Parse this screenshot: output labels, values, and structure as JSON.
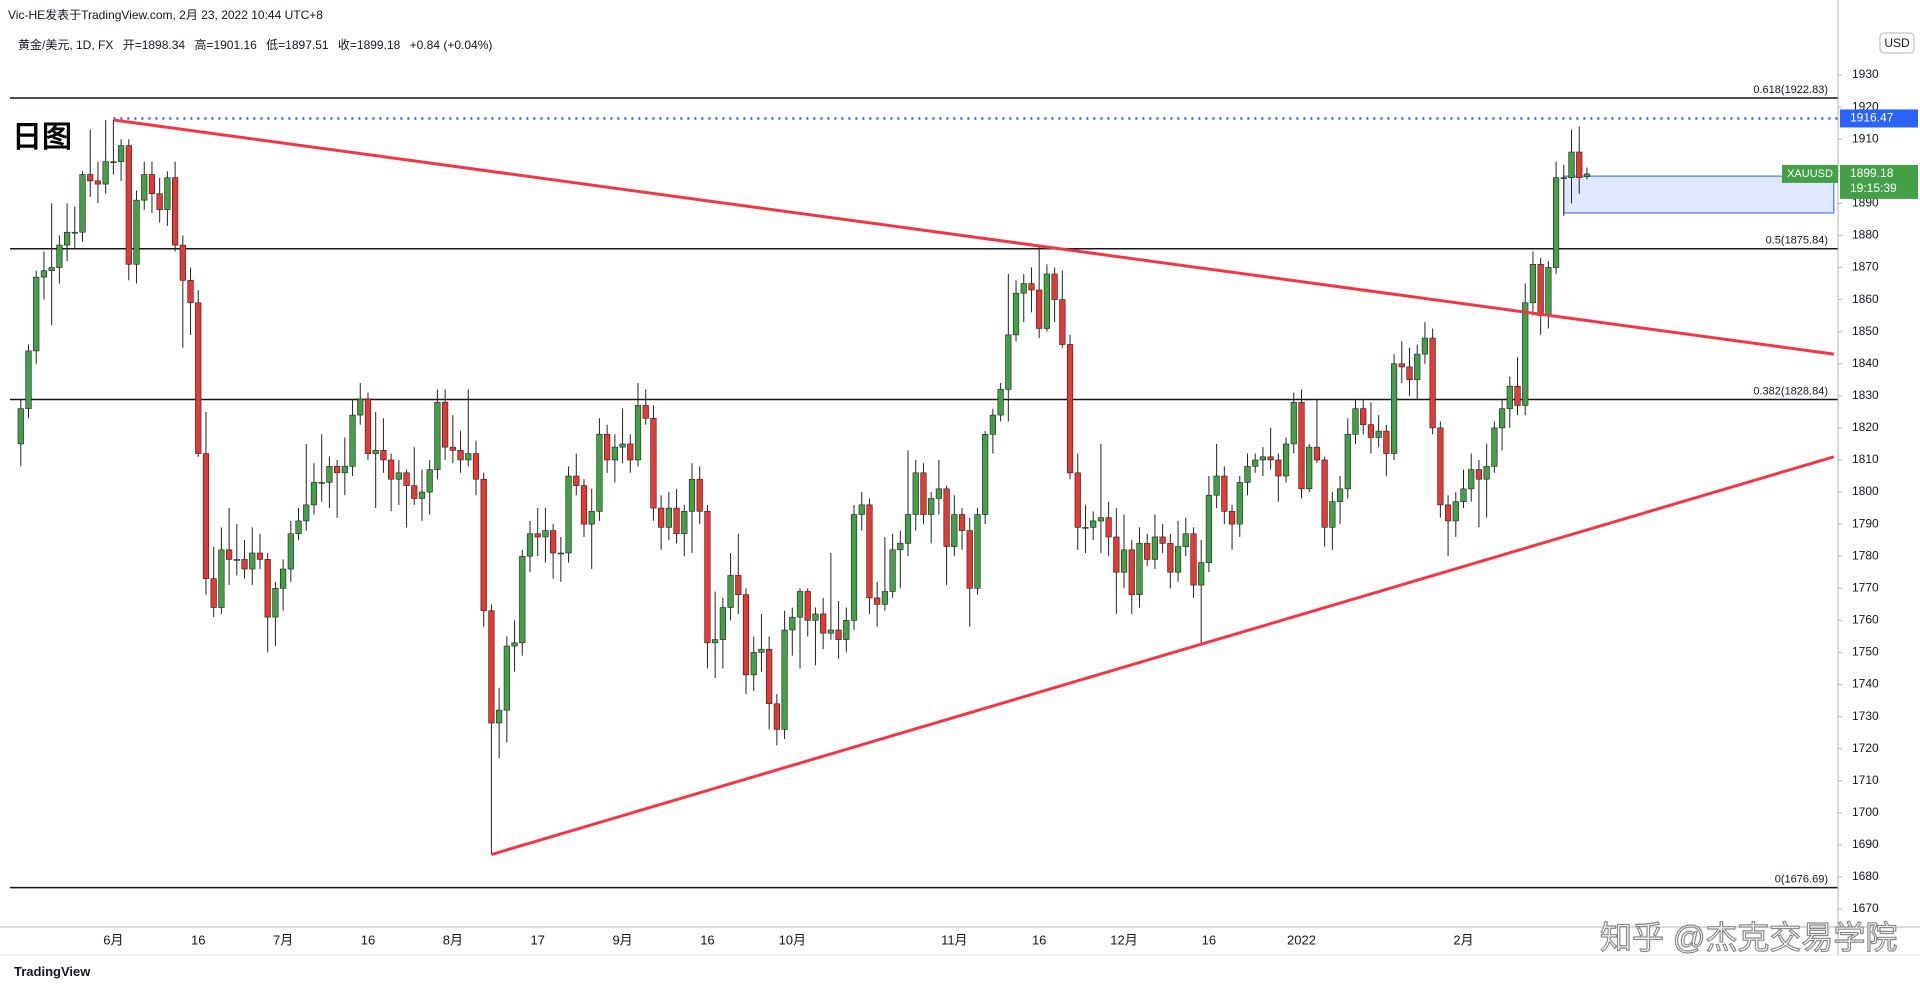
{
  "header": {
    "publisher": "Vic-HE发表于TradingView.com, 2月 23, 2022 10:44 UTC+8",
    "symbol": "黄金/美元, 1D, FX",
    "ohlc": [
      "开=1898.34",
      "高=1901.16",
      "低=1897.51",
      "收=1899.18",
      "+0.84 (+0.04%)"
    ]
  },
  "chart_data": {
    "type": "candlestick",
    "title": "日图",
    "currency": "USD",
    "up_color": "#43a047",
    "down_color": "#e53935",
    "wick_color": "#222222",
    "grid": false,
    "categories": [
      null,
      null,
      null,
      null,
      null,
      null,
      null,
      null,
      null,
      null,
      null,
      null,
      "6月",
      null,
      null,
      null,
      null,
      null,
      null,
      null,
      null,
      null,
      null,
      "16",
      null,
      null,
      null,
      null,
      null,
      null,
      null,
      null,
      null,
      null,
      "7月",
      null,
      null,
      null,
      null,
      null,
      null,
      null,
      null,
      null,
      null,
      "16",
      null,
      null,
      null,
      null,
      null,
      null,
      null,
      null,
      null,
      null,
      "8月",
      null,
      null,
      null,
      null,
      null,
      null,
      null,
      null,
      null,
      null,
      "17",
      null,
      null,
      null,
      null,
      null,
      null,
      null,
      null,
      null,
      null,
      "9月",
      null,
      null,
      null,
      null,
      null,
      null,
      null,
      null,
      null,
      null,
      "16",
      null,
      null,
      null,
      null,
      null,
      null,
      null,
      null,
      null,
      null,
      "10月",
      null,
      null,
      null,
      null,
      null,
      null,
      null,
      null,
      null,
      null,
      null,
      null,
      null,
      null,
      null,
      null,
      null,
      null,
      null,
      null,
      "11月",
      null,
      null,
      null,
      null,
      null,
      null,
      null,
      null,
      null,
      null,
      "16",
      null,
      null,
      null,
      null,
      null,
      null,
      null,
      null,
      null,
      null,
      "12月",
      null,
      null,
      null,
      null,
      null,
      null,
      null,
      null,
      null,
      null,
      "16",
      null,
      null,
      null,
      null,
      null,
      null,
      null,
      null,
      null,
      null,
      null,
      "2022",
      null,
      null,
      null,
      null,
      null,
      null,
      null,
      null,
      null,
      null,
      null,
      null,
      null,
      null,
      null,
      null,
      null,
      null,
      null,
      null,
      "2月",
      null,
      null,
      null,
      null,
      null,
      null,
      null,
      null,
      null,
      null,
      null,
      null,
      null,
      null,
      null,
      null
    ],
    "candles": [
      [
        1815,
        1829,
        1808,
        1826
      ],
      [
        1826,
        1846,
        1823,
        1844
      ],
      [
        1844,
        1869,
        1840,
        1867
      ],
      [
        1867,
        1875,
        1860,
        1869
      ],
      [
        1869,
        1890,
        1852,
        1870
      ],
      [
        1870,
        1880,
        1865,
        1877
      ],
      [
        1877,
        1890,
        1872,
        1881
      ],
      [
        1881,
        1889,
        1876,
        1881
      ],
      [
        1881,
        1900,
        1878,
        1899
      ],
      [
        1899,
        1913,
        1892,
        1897
      ],
      [
        1897,
        1903,
        1890,
        1896
      ],
      [
        1896,
        1916,
        1893,
        1903
      ],
      [
        1903,
        1916,
        1899,
        1903
      ],
      [
        1903,
        1910,
        1897,
        1908
      ],
      [
        1908,
        1910,
        1866,
        1871
      ],
      [
        1871,
        1894,
        1865,
        1891
      ],
      [
        1891,
        1903,
        1888,
        1899
      ],
      [
        1899,
        1903,
        1887,
        1893
      ],
      [
        1893,
        1898,
        1884,
        1888
      ],
      [
        1888,
        1900,
        1883,
        1898
      ],
      [
        1898,
        1903,
        1875,
        1877
      ],
      [
        1877,
        1880,
        1845,
        1866
      ],
      [
        1866,
        1870,
        1849,
        1859
      ],
      [
        1859,
        1863,
        1811,
        1812
      ],
      [
        1812,
        1825,
        1768,
        1773
      ],
      [
        1773,
        1783,
        1761,
        1764
      ],
      [
        1764,
        1789,
        1762,
        1782
      ],
      [
        1782,
        1795,
        1771,
        1779
      ],
      [
        1779,
        1790,
        1774,
        1779
      ],
      [
        1779,
        1785,
        1773,
        1776
      ],
      [
        1776,
        1789,
        1771,
        1781
      ],
      [
        1781,
        1787,
        1776,
        1779
      ],
      [
        1779,
        1781,
        1750,
        1761
      ],
      [
        1761,
        1772,
        1752,
        1770
      ],
      [
        1770,
        1779,
        1763,
        1776
      ],
      [
        1776,
        1791,
        1772,
        1787
      ],
      [
        1787,
        1795,
        1785,
        1791
      ],
      [
        1791,
        1815,
        1788,
        1796
      ],
      [
        1796,
        1809,
        1793,
        1803
      ],
      [
        1803,
        1818,
        1797,
        1803
      ],
      [
        1803,
        1811,
        1795,
        1808
      ],
      [
        1808,
        1810,
        1792,
        1806
      ],
      [
        1806,
        1817,
        1799,
        1808
      ],
      [
        1808,
        1829,
        1805,
        1824
      ],
      [
        1824,
        1834,
        1821,
        1829
      ],
      [
        1829,
        1831,
        1810,
        1812
      ],
      [
        1812,
        1825,
        1795,
        1813
      ],
      [
        1813,
        1823,
        1806,
        1810
      ],
      [
        1810,
        1812,
        1794,
        1804
      ],
      [
        1804,
        1810,
        1796,
        1806
      ],
      [
        1806,
        1807,
        1789,
        1802
      ],
      [
        1802,
        1814,
        1796,
        1798
      ],
      [
        1798,
        1807,
        1791,
        1800
      ],
      [
        1800,
        1810,
        1793,
        1807
      ],
      [
        1807,
        1832,
        1804,
        1828
      ],
      [
        1828,
        1832,
        1810,
        1814
      ],
      [
        1814,
        1824,
        1809,
        1813
      ],
      [
        1813,
        1819,
        1806,
        1810
      ],
      [
        1810,
        1832,
        1808,
        1812
      ],
      [
        1812,
        1816,
        1799,
        1804
      ],
      [
        1804,
        1806,
        1758,
        1763
      ],
      [
        1763,
        1765,
        1687,
        1728
      ],
      [
        1728,
        1739,
        1717,
        1732
      ],
      [
        1732,
        1755,
        1722,
        1752
      ],
      [
        1752,
        1760,
        1744,
        1753
      ],
      [
        1753,
        1782,
        1749,
        1780
      ],
      [
        1780,
        1791,
        1775,
        1787
      ],
      [
        1787,
        1795,
        1780,
        1786
      ],
      [
        1786,
        1795,
        1778,
        1788
      ],
      [
        1788,
        1790,
        1773,
        1781
      ],
      [
        1781,
        1786,
        1772,
        1781
      ],
      [
        1781,
        1808,
        1778,
        1805
      ],
      [
        1805,
        1812,
        1799,
        1802
      ],
      [
        1802,
        1804,
        1786,
        1790
      ],
      [
        1790,
        1801,
        1776,
        1794
      ],
      [
        1794,
        1823,
        1791,
        1818
      ],
      [
        1818,
        1821,
        1806,
        1810
      ],
      [
        1810,
        1818,
        1803,
        1814
      ],
      [
        1814,
        1826,
        1809,
        1815
      ],
      [
        1815,
        1818,
        1806,
        1810
      ],
      [
        1810,
        1834,
        1808,
        1827
      ],
      [
        1827,
        1832,
        1821,
        1823
      ],
      [
        1823,
        1827,
        1791,
        1795
      ],
      [
        1795,
        1799,
        1782,
        1789
      ],
      [
        1789,
        1800,
        1785,
        1795
      ],
      [
        1795,
        1801,
        1784,
        1787
      ],
      [
        1787,
        1796,
        1780,
        1794
      ],
      [
        1794,
        1809,
        1781,
        1804
      ],
      [
        1804,
        1808,
        1790,
        1794
      ],
      [
        1794,
        1796,
        1745,
        1753
      ],
      [
        1753,
        1769,
        1742,
        1754
      ],
      [
        1754,
        1767,
        1745,
        1764
      ],
      [
        1764,
        1781,
        1760,
        1774
      ],
      [
        1774,
        1787,
        1762,
        1768
      ],
      [
        1768,
        1770,
        1737,
        1743
      ],
      [
        1743,
        1755,
        1738,
        1750
      ],
      [
        1750,
        1762,
        1744,
        1751
      ],
      [
        1751,
        1755,
        1726,
        1734
      ],
      [
        1734,
        1737,
        1721,
        1726
      ],
      [
        1726,
        1763,
        1723,
        1757
      ],
      [
        1757,
        1764,
        1749,
        1761
      ],
      [
        1761,
        1770,
        1745,
        1769
      ],
      [
        1769,
        1770,
        1755,
        1760
      ],
      [
        1760,
        1764,
        1746,
        1762
      ],
      [
        1762,
        1767,
        1751,
        1756
      ],
      [
        1756,
        1781,
        1754,
        1757
      ],
      [
        1757,
        1766,
        1748,
        1754
      ],
      [
        1754,
        1764,
        1750,
        1760
      ],
      [
        1760,
        1796,
        1757,
        1793
      ],
      [
        1793,
        1800,
        1788,
        1796
      ],
      [
        1796,
        1798,
        1762,
        1767
      ],
      [
        1767,
        1772,
        1758,
        1765
      ],
      [
        1765,
        1786,
        1763,
        1769
      ],
      [
        1769,
        1787,
        1767,
        1782
      ],
      [
        1782,
        1788,
        1770,
        1784
      ],
      [
        1784,
        1813,
        1780,
        1793
      ],
      [
        1793,
        1810,
        1788,
        1806
      ],
      [
        1806,
        1809,
        1790,
        1793
      ],
      [
        1793,
        1800,
        1784,
        1798
      ],
      [
        1798,
        1810,
        1793,
        1801
      ],
      [
        1801,
        1802,
        1771,
        1783
      ],
      [
        1783,
        1799,
        1780,
        1793
      ],
      [
        1793,
        1795,
        1782,
        1788
      ],
      [
        1788,
        1792,
        1758,
        1770
      ],
      [
        1770,
        1795,
        1768,
        1793
      ],
      [
        1793,
        1819,
        1790,
        1818
      ],
      [
        1818,
        1826,
        1812,
        1824
      ],
      [
        1824,
        1834,
        1822,
        1832
      ],
      [
        1832,
        1868,
        1822,
        1849
      ],
      [
        1849,
        1866,
        1847,
        1862
      ],
      [
        1862,
        1868,
        1853,
        1865
      ],
      [
        1865,
        1870,
        1856,
        1863
      ],
      [
        1863,
        1877,
        1848,
        1851
      ],
      [
        1851,
        1871,
        1850,
        1868
      ],
      [
        1868,
        1870,
        1853,
        1860
      ],
      [
        1860,
        1869,
        1845,
        1846
      ],
      [
        1846,
        1849,
        1804,
        1806
      ],
      [
        1806,
        1812,
        1782,
        1789
      ],
      [
        1789,
        1796,
        1781,
        1789
      ],
      [
        1789,
        1794,
        1785,
        1791
      ],
      [
        1791,
        1815,
        1781,
        1792
      ],
      [
        1792,
        1797,
        1780,
        1786
      ],
      [
        1786,
        1795,
        1762,
        1775
      ],
      [
        1775,
        1793,
        1770,
        1782
      ],
      [
        1782,
        1785,
        1762,
        1768
      ],
      [
        1768,
        1789,
        1764,
        1784
      ],
      [
        1784,
        1787,
        1777,
        1779
      ],
      [
        1779,
        1793,
        1776,
        1786
      ],
      [
        1786,
        1790,
        1781,
        1784
      ],
      [
        1784,
        1787,
        1770,
        1775
      ],
      [
        1775,
        1791,
        1772,
        1783
      ],
      [
        1783,
        1792,
        1780,
        1787
      ],
      [
        1787,
        1789,
        1767,
        1771
      ],
      [
        1771,
        1785,
        1753,
        1778
      ],
      [
        1778,
        1805,
        1775,
        1799
      ],
      [
        1799,
        1815,
        1795,
        1805
      ],
      [
        1805,
        1808,
        1790,
        1794
      ],
      [
        1794,
        1796,
        1782,
        1790
      ],
      [
        1790,
        1805,
        1786,
        1803
      ],
      [
        1803,
        1812,
        1799,
        1808
      ],
      [
        1808,
        1812,
        1806,
        1810
      ],
      [
        1810,
        1814,
        1805,
        1811
      ],
      [
        1811,
        1820,
        1807,
        1810
      ],
      [
        1810,
        1812,
        1797,
        1805
      ],
      [
        1805,
        1817,
        1803,
        1815
      ],
      [
        1815,
        1831,
        1812,
        1828
      ],
      [
        1828,
        1832,
        1798,
        1801
      ],
      [
        1801,
        1815,
        1800,
        1814
      ],
      [
        1814,
        1829,
        1809,
        1810
      ],
      [
        1810,
        1811,
        1783,
        1789
      ],
      [
        1789,
        1800,
        1782,
        1797
      ],
      [
        1797,
        1805,
        1790,
        1801
      ],
      [
        1801,
        1823,
        1798,
        1818
      ],
      [
        1818,
        1829,
        1815,
        1826
      ],
      [
        1826,
        1829,
        1818,
        1821
      ],
      [
        1821,
        1828,
        1812,
        1817
      ],
      [
        1817,
        1824,
        1814,
        1819
      ],
      [
        1819,
        1821,
        1805,
        1812
      ],
      [
        1812,
        1843,
        1810,
        1840
      ],
      [
        1840,
        1847,
        1834,
        1839
      ],
      [
        1839,
        1845,
        1830,
        1835
      ],
      [
        1835,
        1846,
        1829,
        1843
      ],
      [
        1843,
        1853,
        1840,
        1848
      ],
      [
        1848,
        1851,
        1818,
        1820
      ],
      [
        1820,
        1822,
        1792,
        1796
      ],
      [
        1796,
        1799,
        1780,
        1791
      ],
      [
        1791,
        1800,
        1786,
        1797
      ],
      [
        1797,
        1807,
        1795,
        1801
      ],
      [
        1801,
        1812,
        1797,
        1807
      ],
      [
        1807,
        1810,
        1789,
        1804
      ],
      [
        1804,
        1815,
        1792,
        1808
      ],
      [
        1808,
        1822,
        1806,
        1820
      ],
      [
        1820,
        1829,
        1813,
        1826
      ],
      [
        1826,
        1836,
        1820,
        1833
      ],
      [
        1833,
        1842,
        1824,
        1827
      ],
      [
        1827,
        1865,
        1824,
        1859
      ],
      [
        1859,
        1875,
        1855,
        1871
      ],
      [
        1871,
        1873,
        1849,
        1855
      ],
      [
        1855,
        1872,
        1851,
        1870
      ],
      [
        1870,
        1903,
        1868,
        1898
      ],
      [
        1898,
        1902,
        1886,
        1898
      ],
      [
        1898,
        1913,
        1890,
        1906
      ],
      [
        1906,
        1914,
        1893,
        1898
      ],
      [
        1898.34,
        1901.16,
        1897.51,
        1899.18
      ]
    ],
    "ylim": [
      1664.4,
      1953.4
    ],
    "yticks": [
      1670,
      1680,
      1690,
      1700,
      1710,
      1720,
      1730,
      1740,
      1750,
      1760,
      1770,
      1780,
      1790,
      1800,
      1810,
      1820,
      1830,
      1840,
      1850,
      1860,
      1870,
      1880,
      1890,
      1900,
      1910,
      1920,
      1930
    ],
    "levels": [
      {
        "value": 1922.83,
        "label": "0.618(1922.83)"
      },
      {
        "value": 1875.84,
        "label": "0.5(1875.84)"
      },
      {
        "value": 1828.84,
        "label": "0.382(1828.84)"
      },
      {
        "value": 1676.69,
        "label": "0(1676.69)"
      }
    ],
    "level_color": "#131722",
    "trendlines": [
      {
        "color": "#f23645",
        "points": [
          [
            12,
            1916
          ],
          [
            235,
            1843
          ]
        ]
      },
      {
        "color": "#f23645",
        "points": [
          [
            61,
            1687
          ],
          [
            235,
            1811
          ]
        ]
      }
    ],
    "alert_line": {
      "value": 1916.47,
      "color": "#2962ff"
    },
    "zone": {
      "x": [
        200,
        235
      ],
      "y": [
        1887,
        1898.5
      ],
      "color": "#2962ff"
    },
    "last_price": {
      "symbol": "XAUUSD",
      "time": "19:15:39",
      "color": "#43a047"
    }
  },
  "footer": {
    "brand": "TradingView",
    "watermark": "知乎 @杰克交易学院"
  }
}
